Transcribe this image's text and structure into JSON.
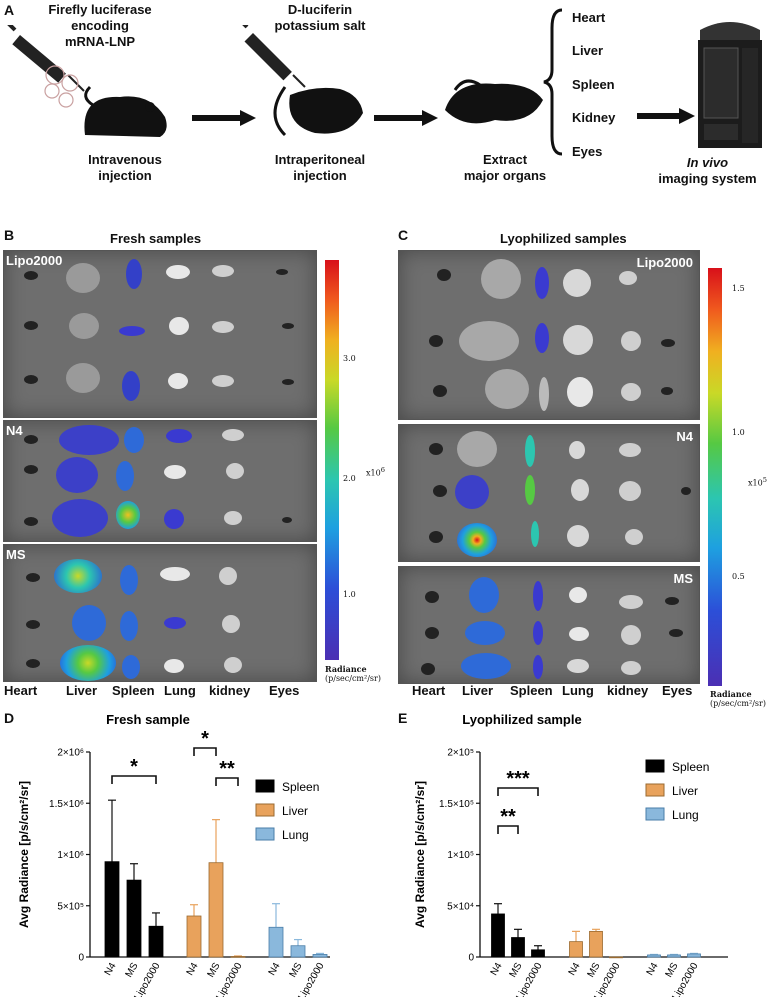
{
  "panelA": {
    "letter": "A",
    "step1": {
      "title_l1": "Firefly luciferase",
      "title_l2": "encoding",
      "title_l3": "mRNA-LNP",
      "caption_l1": "Intravenous",
      "caption_l2": "injection"
    },
    "step2": {
      "title_l1": "D-luciferin",
      "title_l2": "potassium salt",
      "caption_l1": "Intraperitoneal",
      "caption_l2": "injection"
    },
    "step3": {
      "caption_l1": "Extract",
      "caption_l2": "major organs"
    },
    "organs": [
      "Heart",
      "Liver",
      "Spleen",
      "Kidney",
      "Eyes"
    ],
    "step4": {
      "caption_l1": "In vivo",
      "caption_l2": "imaging system"
    }
  },
  "panelB": {
    "letter": "B",
    "title": "Fresh samples",
    "groups": [
      "Lipo2000",
      "N4",
      "MS"
    ],
    "organ_labels": [
      "Heart",
      "Liver",
      "Spleen",
      "Lung",
      "kidney",
      "Eyes"
    ],
    "colorbar": {
      "ticks": [
        "3.0",
        "2.0",
        "1.0"
      ],
      "multiplier": "x10",
      "exp": "6",
      "unit_l1": "Radiance",
      "unit_l2": "(p/sec/cm²/sr)"
    }
  },
  "panelC": {
    "letter": "C",
    "title": "Lyophilized samples",
    "groups": [
      "Lipo2000",
      "N4",
      "MS"
    ],
    "organ_labels": [
      "Heart",
      "Liver",
      "Spleen",
      "Lung",
      "kidney",
      "Eyes"
    ],
    "colorbar": {
      "ticks": [
        "1.5",
        "1.0",
        "0.5"
      ],
      "multiplier": "x10",
      "exp": "5",
      "unit_l1": "Radiance",
      "unit_l2": "(p/sec/cm²/sr)"
    }
  },
  "chart_data": [
    {
      "id": "D",
      "letter": "D",
      "type": "bar",
      "title": "Fresh sample",
      "ylabel": "Avg Radiance [p/s/cm²/sr]",
      "yticks": [
        "0",
        "5×10⁵",
        "1×10⁶",
        "1.5×10⁶",
        "2×10⁶"
      ],
      "ylim": [
        0,
        2000000
      ],
      "groups": [
        "Spleen",
        "Liver",
        "Lung"
      ],
      "categories": [
        "N4",
        "MS",
        "Lipo2000"
      ],
      "series": [
        {
          "name": "Spleen",
          "color": "#000000",
          "values": [
            930000,
            750000,
            300000
          ],
          "errors": [
            600000,
            160000,
            130000
          ]
        },
        {
          "name": "Liver",
          "color": "#e8a25c",
          "values": [
            400000,
            920000,
            5000
          ],
          "errors": [
            110000,
            420000,
            5000
          ]
        },
        {
          "name": "Lung",
          "color": "#8ab8dc",
          "values": [
            290000,
            110000,
            25000
          ],
          "errors": [
            230000,
            60000,
            10000
          ]
        }
      ],
      "significance": [
        {
          "group": "Spleen",
          "from": "N4",
          "to": "Lipo2000",
          "label": "*"
        },
        {
          "group": "Liver",
          "from": "N4",
          "to": "MS",
          "label": "*"
        },
        {
          "group": "Liver",
          "from": "MS",
          "to": "Lipo2000",
          "label": "**"
        }
      ],
      "legend": [
        "Spleen",
        "Liver",
        "Lung"
      ],
      "legend_position": "top-right"
    },
    {
      "id": "E",
      "letter": "E",
      "type": "bar",
      "title": "Lyophilized sample",
      "ylabel": "Avg Radiance [p/s/cm²/sr]",
      "yticks": [
        "0",
        "5×10⁴",
        "1×10⁵",
        "1.5×10⁵",
        "2×10⁵"
      ],
      "ylim": [
        0,
        200000
      ],
      "groups": [
        "Spleen",
        "Liver",
        "Lung"
      ],
      "categories": [
        "N4",
        "MS",
        "Lipo2000"
      ],
      "series": [
        {
          "name": "Spleen",
          "color": "#000000",
          "values": [
            42000,
            19000,
            7000
          ],
          "errors": [
            10000,
            8000,
            4000
          ]
        },
        {
          "name": "Liver",
          "color": "#e8a25c",
          "values": [
            15000,
            25000,
            0
          ],
          "errors": [
            10000,
            2000,
            0
          ]
        },
        {
          "name": "Lung",
          "color": "#8ab8dc",
          "values": [
            2000,
            2000,
            3000
          ],
          "errors": [
            500,
            500,
            500
          ]
        }
      ],
      "significance": [
        {
          "group": "Spleen",
          "from": "N4",
          "to": "MS",
          "label": "**"
        },
        {
          "group": "Spleen",
          "from": "N4",
          "to": "Lipo2000",
          "label": "***"
        }
      ],
      "legend": [
        "Spleen",
        "Liver",
        "Lung"
      ],
      "legend_position": "top-right"
    }
  ]
}
